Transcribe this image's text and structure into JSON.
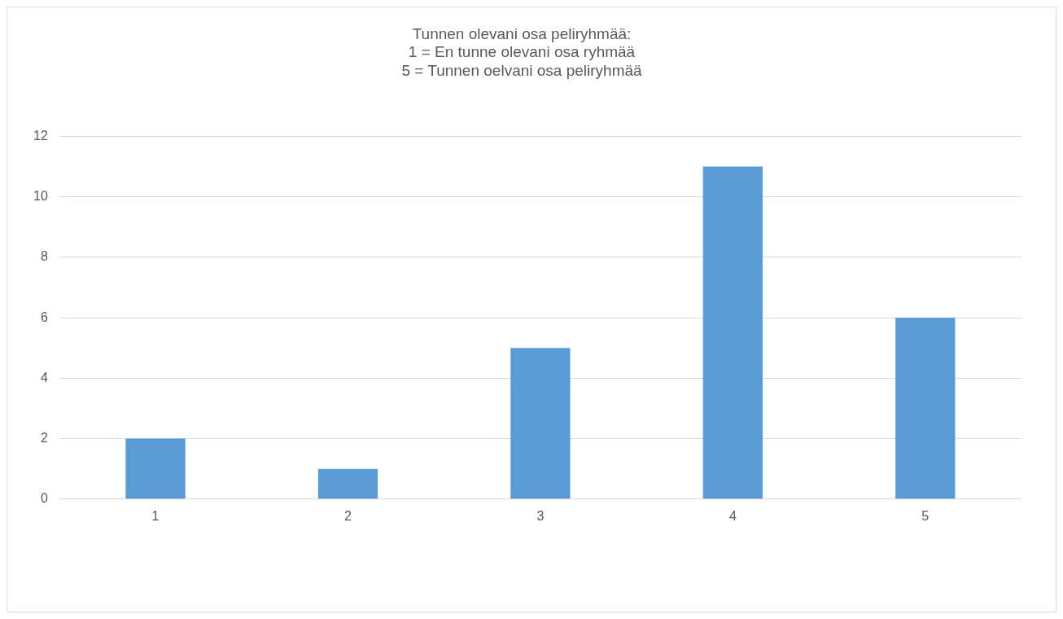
{
  "chart_data": {
    "type": "bar",
    "title": "Tunnen olevani osa peliryhmää:\n1 = En tunne olevani osa ryhmää\n5 = Tunnen oelvani osa peliryhmää",
    "categories": [
      "1",
      "2",
      "3",
      "4",
      "5"
    ],
    "values": [
      2,
      1,
      5,
      11,
      6
    ],
    "color": "#5b9bd5",
    "ylim": [
      0,
      12
    ],
    "yticks": [
      0,
      2,
      4,
      6,
      8,
      10,
      12
    ],
    "grid": "y",
    "legend": false
  }
}
